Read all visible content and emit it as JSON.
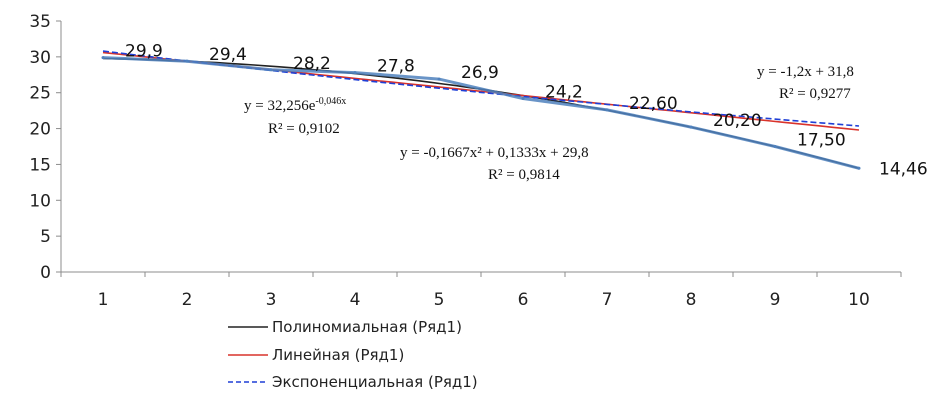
{
  "chart_data": {
    "type": "line",
    "x": [
      1,
      2,
      3,
      4,
      5,
      6,
      7,
      8,
      9,
      10
    ],
    "xlabels": [
      "1",
      "2",
      "3",
      "4",
      "5",
      "6",
      "7",
      "8",
      "9",
      "10"
    ],
    "ylim": [
      0,
      35
    ],
    "yticks": [
      "0",
      "5",
      "10",
      "15",
      "20",
      "25",
      "30",
      "35"
    ],
    "series": [
      {
        "values": [
          29.9,
          29.4,
          28.2,
          27.8,
          26.9,
          24.2,
          22.6,
          20.2,
          17.5,
          14.46
        ],
        "labels": [
          "29,9",
          "29,4",
          "28,2",
          "27,8",
          "26,9",
          "24,2",
          "22,60",
          "20,20",
          "17,50",
          "14,46"
        ],
        "color": "#4f81bd"
      }
    ],
    "trendlines": [
      {
        "name": "Полиномиальная (Ряд1)",
        "type": "polynomial",
        "coef": [
          -0.1667,
          0.1333,
          29.8
        ],
        "color": "#222222",
        "dash": "solid",
        "equation": "y = -0,1667x² + 0,1333x + 29,8",
        "r2": "R² = 0,9814"
      },
      {
        "name": "Линейная (Ряд1)",
        "type": "linear",
        "coef": [
          -1.2,
          31.8
        ],
        "color": "#d9332b",
        "dash": "solid",
        "equation": "y = -1,2x + 31,8",
        "r2": "R² = 0,9277"
      },
      {
        "name": "Экспоненциальная (Ряд1)",
        "type": "exponential",
        "coef": [
          32.256,
          -0.046
        ],
        "color": "#1f3fd6",
        "dash": "dashed",
        "equation": "y = 32,256e",
        "equation_exp": "-0,046x",
        "r2": "R² = 0,9102"
      }
    ],
    "legend_position": "bottom-left",
    "grid": false
  }
}
